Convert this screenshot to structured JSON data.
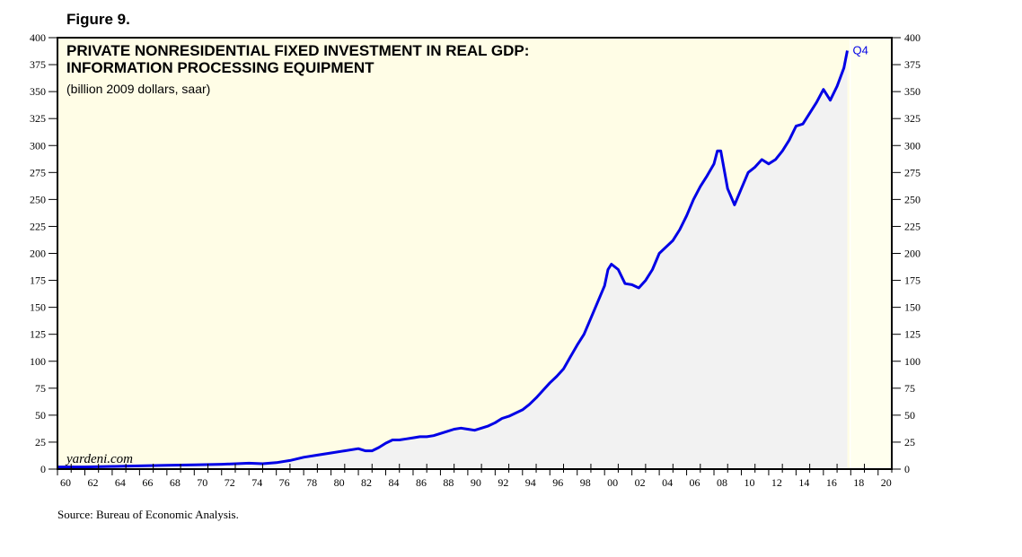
{
  "figure_label": "Figure 9.",
  "source": "Source: Bureau of Economic Analysis.",
  "watermark": "yardeni.com",
  "chart_data": {
    "type": "area",
    "title_line1": "PRIVATE NONRESIDENTIAL FIXED INVESTMENT IN REAL GDP:",
    "title_line2": "INFORMATION PROCESSING EQUIPMENT",
    "subtitle": "(billion 2009 dollars, saar)",
    "end_label": "Q4",
    "xlim": [
      1960,
      2021
    ],
    "ylim": [
      0,
      400
    ],
    "y_ticks": [
      0,
      25,
      50,
      75,
      100,
      125,
      150,
      175,
      200,
      225,
      250,
      275,
      300,
      325,
      350,
      375,
      400
    ],
    "x_tick_labels": [
      "60",
      "62",
      "64",
      "66",
      "68",
      "70",
      "72",
      "74",
      "76",
      "78",
      "80",
      "82",
      "84",
      "86",
      "88",
      "90",
      "92",
      "94",
      "96",
      "98",
      "00",
      "02",
      "04",
      "06",
      "08",
      "10",
      "12",
      "14",
      "16",
      "18",
      "20"
    ],
    "x_tick_years": [
      1960,
      1962,
      1964,
      1966,
      1968,
      1970,
      1972,
      1974,
      1976,
      1978,
      1980,
      1982,
      1984,
      1986,
      1988,
      1990,
      1992,
      1994,
      1996,
      1998,
      2000,
      2002,
      2004,
      2006,
      2008,
      2010,
      2012,
      2014,
      2016,
      2018,
      2020
    ],
    "shade_from": 2018.0,
    "colors": {
      "line": "#0000e6",
      "area": "#f2f2f2",
      "background": "#fffde6",
      "shade": "#ffffee"
    },
    "series": [
      {
        "name": "Information processing equipment",
        "x": [
          1960,
          1962,
          1964,
          1966,
          1968,
          1970,
          1972,
          1974,
          1975,
          1976,
          1977,
          1978,
          1979,
          1980,
          1981,
          1982,
          1982.5,
          1983,
          1983.5,
          1984,
          1984.5,
          1985,
          1985.5,
          1986,
          1986.5,
          1987,
          1987.5,
          1988,
          1988.5,
          1989,
          1989.5,
          1990,
          1990.5,
          1991,
          1991.5,
          1992,
          1992.5,
          1993,
          1993.5,
          1994,
          1994.5,
          1995,
          1995.5,
          1996,
          1996.5,
          1997,
          1997.5,
          1998,
          1998.5,
          1999,
          1999.5,
          2000,
          2000.25,
          2000.5,
          2001,
          2001.5,
          2002,
          2002.5,
          2003,
          2003.5,
          2004,
          2004.5,
          2005,
          2005.5,
          2006,
          2006.5,
          2007,
          2007.5,
          2008,
          2008.25,
          2008.5,
          2009,
          2009.5,
          2010,
          2010.5,
          2011,
          2011.5,
          2012,
          2012.5,
          2013,
          2013.5,
          2014,
          2014.5,
          2015,
          2015.5,
          2016,
          2016.5,
          2017,
          2017.5,
          2017.75
        ],
        "values": [
          2,
          2,
          2.5,
          3,
          3.5,
          4,
          4.5,
          5.5,
          5,
          6,
          8,
          11,
          13,
          15,
          17,
          19,
          17,
          17,
          20,
          24,
          27,
          27,
          28,
          29,
          30,
          30,
          31,
          33,
          35,
          37,
          38,
          37,
          36,
          38,
          40,
          43,
          47,
          49,
          52,
          55,
          60,
          66,
          73,
          80,
          86,
          93,
          104,
          115,
          125,
          140,
          155,
          170,
          185,
          190,
          185,
          172,
          171,
          168,
          175,
          185,
          200,
          206,
          212,
          222,
          235,
          250,
          262,
          272,
          283,
          295,
          295,
          260,
          245,
          260,
          275,
          280,
          287,
          283,
          287,
          295,
          305,
          318,
          320,
          330,
          340,
          352,
          342,
          355,
          372,
          388
        ]
      }
    ]
  }
}
